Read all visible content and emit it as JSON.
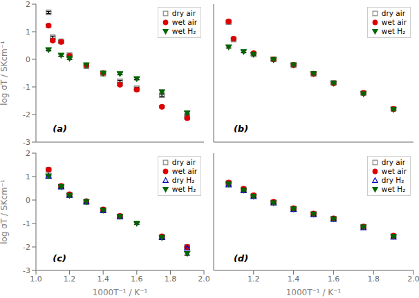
{
  "chart_data": [
    {
      "type": "scatter",
      "annotations": [
        "(a)"
      ],
      "y_label": "log σT / SKcm⁻¹",
      "xlim": [
        1.0,
        2.0
      ],
      "ylim": [
        -3,
        2
      ],
      "xticks": [
        {
          "value": 1.0,
          "label": "1.0"
        },
        1.2,
        1.4,
        1.6,
        1.8,
        {
          "value": 2.0,
          "label": "2.0"
        }
      ],
      "yticks": [
        -3,
        -2,
        -1,
        0,
        1,
        2
      ],
      "grid": false,
      "legend": "upper right",
      "tick_labels": "y",
      "series": [
        {
          "name": "dry air",
          "marker": "open-square",
          "color": "#888888",
          "x": [
            1.075,
            1.1,
            1.15,
            1.2,
            1.3,
            1.4,
            1.5,
            1.6,
            1.75,
            1.9
          ],
          "values": [
            1.7,
            0.8,
            0.65,
            0.15,
            -0.25,
            -0.52,
            -0.8,
            -1.05,
            -1.3,
            -2.05
          ],
          "yerr": [
            0.04,
            0.04,
            0.04,
            0.04,
            0.04,
            0.04,
            0.04,
            0.04,
            0.04,
            0.04
          ]
        },
        {
          "name": "wet air",
          "marker": "circle",
          "color": "#dd0000",
          "x": [
            1.075,
            1.1,
            1.15,
            1.2,
            1.3,
            1.4,
            1.5,
            1.6,
            1.75,
            1.9
          ],
          "values": [
            1.22,
            0.68,
            0.63,
            0.12,
            -0.22,
            -0.5,
            -0.92,
            -1.1,
            -1.72,
            -2.13
          ],
          "yerr": [
            0.04,
            0.04,
            0.04,
            0.04,
            0.04,
            0.04,
            0.04,
            0.04,
            0.04,
            0.04
          ]
        },
        {
          "name": "wet H₂",
          "marker": "triangle-down",
          "color": "#006600",
          "x": [
            1.075,
            1.15,
            1.2,
            1.3,
            1.4,
            1.5,
            1.6,
            1.75,
            1.9
          ],
          "values": [
            0.35,
            0.15,
            0.04,
            -0.2,
            -0.5,
            -0.52,
            -0.7,
            -1.18,
            -1.95
          ],
          "yerr": [
            0.04,
            0.04,
            0.04,
            0.04,
            0.04,
            0.04,
            0.04,
            0.07,
            0.07
          ]
        }
      ]
    },
    {
      "type": "scatter",
      "annotations": [
        "(b)"
      ],
      "xlim": [
        1.0,
        2.0
      ],
      "ylim": [
        -3,
        2
      ],
      "xticks": [
        {
          "value": 1.0,
          "label": "1.0"
        },
        1.2,
        1.4,
        1.6,
        1.8,
        {
          "value": 2.0,
          "label": "2.0"
        }
      ],
      "yticks": [
        -3,
        -2,
        -1,
        0,
        1,
        2
      ],
      "grid": false,
      "legend": "upper right",
      "tick_labels": false,
      "series": [
        {
          "name": "dry air",
          "marker": "open-square",
          "color": "#888888",
          "x": [
            1.075,
            1.1,
            1.2,
            1.3,
            1.4,
            1.5,
            1.6,
            1.75,
            1.9
          ],
          "values": [
            1.35,
            0.72,
            0.18,
            0.0,
            -0.22,
            -0.53,
            -0.85,
            -1.22,
            -1.8
          ],
          "yerr": [
            0.04,
            0.04,
            0.04,
            0.04,
            0.04,
            0.04,
            0.04,
            0.04,
            0.04
          ]
        },
        {
          "name": "wet air",
          "marker": "circle",
          "color": "#dd0000",
          "x": [
            1.075,
            1.1,
            1.2,
            1.3,
            1.4,
            1.5,
            1.6,
            1.75,
            1.9
          ],
          "values": [
            1.37,
            0.75,
            0.22,
            0.0,
            -0.2,
            -0.52,
            -0.87,
            -1.22,
            -1.8
          ],
          "yerr": [
            0.04,
            0.04,
            0.04,
            0.04,
            0.04,
            0.04,
            0.04,
            0.04,
            0.04
          ]
        },
        {
          "name": "wet H₂",
          "marker": "triangle-down",
          "color": "#006600",
          "x": [
            1.075,
            1.15,
            1.2,
            1.3,
            1.4,
            1.5,
            1.6,
            1.75,
            1.9
          ],
          "values": [
            0.45,
            0.28,
            0.18,
            -0.01,
            -0.2,
            -0.52,
            -0.87,
            -1.25,
            -1.82
          ],
          "yerr": [
            0.04,
            0.04,
            0.04,
            0.04,
            0.04,
            0.04,
            0.04,
            0.04,
            0.04
          ]
        }
      ]
    },
    {
      "type": "scatter",
      "annotations": [
        "(c)"
      ],
      "x_label": "1000T⁻¹ / K⁻¹",
      "y_label": "log σT / SKcm⁻¹",
      "xlim": [
        1.0,
        2.0
      ],
      "ylim": [
        -3,
        2
      ],
      "xticks": [
        {
          "value": 1.0,
          "label": "1.0"
        },
        1.2,
        1.4,
        1.6,
        1.8,
        {
          "value": 2.0,
          "label": "2.0"
        }
      ],
      "yticks": [
        -3,
        -2,
        -1,
        0,
        1,
        2
      ],
      "grid": false,
      "legend": "upper right",
      "series": [
        {
          "name": "dry air",
          "marker": "open-square",
          "color": "#888888",
          "x": [
            1.075,
            1.15,
            1.2,
            1.3,
            1.4,
            1.5,
            1.75,
            1.9
          ],
          "values": [
            1.28,
            0.58,
            0.22,
            -0.08,
            -0.42,
            -0.7,
            -1.58,
            -2.0
          ],
          "yerr": [
            0.04,
            0.04,
            0.04,
            0.04,
            0.04,
            0.04,
            0.04,
            0.04
          ]
        },
        {
          "name": "wet air",
          "marker": "circle",
          "color": "#dd0000",
          "x": [
            1.075,
            1.15,
            1.2,
            1.3,
            1.4,
            1.5,
            1.75,
            1.9
          ],
          "values": [
            1.3,
            0.6,
            0.25,
            -0.05,
            -0.4,
            -0.68,
            -1.55,
            -2.0
          ],
          "yerr": [
            0.04,
            0.04,
            0.04,
            0.04,
            0.04,
            0.04,
            0.04,
            0.04
          ]
        },
        {
          "name": "dry H₂",
          "marker": "open-triangle-up",
          "color": "#0000bb",
          "x": [
            1.075,
            1.15,
            1.2,
            1.3,
            1.4,
            1.5,
            1.75,
            1.9
          ],
          "values": [
            1.02,
            0.56,
            0.2,
            -0.08,
            -0.45,
            -0.72,
            -1.6,
            -2.05
          ],
          "yerr": [
            0.04,
            0.04,
            0.04,
            0.04,
            0.04,
            0.04,
            0.04,
            0.04
          ]
        },
        {
          "name": "wet H₂",
          "marker": "triangle-down",
          "color": "#006600",
          "x": [
            1.075,
            1.15,
            1.2,
            1.3,
            1.4,
            1.5,
            1.6,
            1.75,
            1.9
          ],
          "values": [
            1.03,
            0.57,
            0.2,
            -0.07,
            -0.43,
            -0.7,
            -0.99,
            -1.6,
            -2.28
          ],
          "yerr": [
            0.04,
            0.04,
            0.04,
            0.04,
            0.04,
            0.04,
            0.04,
            0.04,
            0.07
          ]
        }
      ]
    },
    {
      "type": "scatter",
      "annotations": [
        "(d)"
      ],
      "x_label": "1000T⁻¹ / K⁻¹",
      "xlim": [
        1.0,
        2.0
      ],
      "ylim": [
        -3,
        2
      ],
      "xticks": [
        {
          "value": 1.0,
          "label": "1.0"
        },
        1.2,
        1.4,
        1.6,
        1.8,
        {
          "value": 2.0,
          "label": "2.0"
        }
      ],
      "yticks": [
        -3,
        -2,
        -1,
        0,
        1,
        2
      ],
      "grid": false,
      "legend": "upper right",
      "tick_labels": "x",
      "series": [
        {
          "name": "dry air",
          "marker": "open-square",
          "color": "#888888",
          "x": [
            1.075,
            1.15,
            1.2,
            1.3,
            1.4,
            1.5,
            1.6,
            1.75,
            1.9
          ],
          "values": [
            0.72,
            0.45,
            0.18,
            -0.1,
            -0.38,
            -0.6,
            -0.8,
            -1.15,
            -1.55
          ],
          "yerr": [
            0.04,
            0.04,
            0.04,
            0.04,
            0.04,
            0.04,
            0.04,
            0.04,
            0.04
          ]
        },
        {
          "name": "wet air",
          "marker": "circle",
          "color": "#dd0000",
          "x": [
            1.075,
            1.15,
            1.2,
            1.3,
            1.4,
            1.5,
            1.6,
            1.75,
            1.9
          ],
          "values": [
            0.75,
            0.48,
            0.2,
            -0.08,
            -0.35,
            -0.58,
            -0.78,
            -1.13,
            -1.52
          ],
          "yerr": [
            0.04,
            0.04,
            0.04,
            0.04,
            0.04,
            0.04,
            0.04,
            0.04,
            0.04
          ]
        },
        {
          "name": "dry H₂",
          "marker": "open-triangle-up",
          "color": "#0000bb",
          "x": [
            1.075,
            1.15,
            1.2,
            1.3,
            1.4,
            1.5,
            1.6,
            1.75,
            1.9
          ],
          "values": [
            0.65,
            0.4,
            0.15,
            -0.12,
            -0.4,
            -0.62,
            -0.82,
            -1.18,
            -1.58
          ],
          "yerr": [
            0.04,
            0.04,
            0.04,
            0.04,
            0.04,
            0.04,
            0.04,
            0.04,
            0.04
          ]
        },
        {
          "name": "wet H₂",
          "marker": "triangle-down",
          "color": "#006600",
          "x": [
            1.075,
            1.15,
            1.2,
            1.3,
            1.4,
            1.5,
            1.6,
            1.75,
            1.9
          ],
          "values": [
            0.68,
            0.42,
            0.16,
            -0.12,
            -0.38,
            -0.6,
            -0.8,
            -1.15,
            -1.55
          ],
          "yerr": [
            0.04,
            0.04,
            0.04,
            0.04,
            0.04,
            0.04,
            0.04,
            0.04,
            0.04
          ]
        }
      ]
    }
  ]
}
